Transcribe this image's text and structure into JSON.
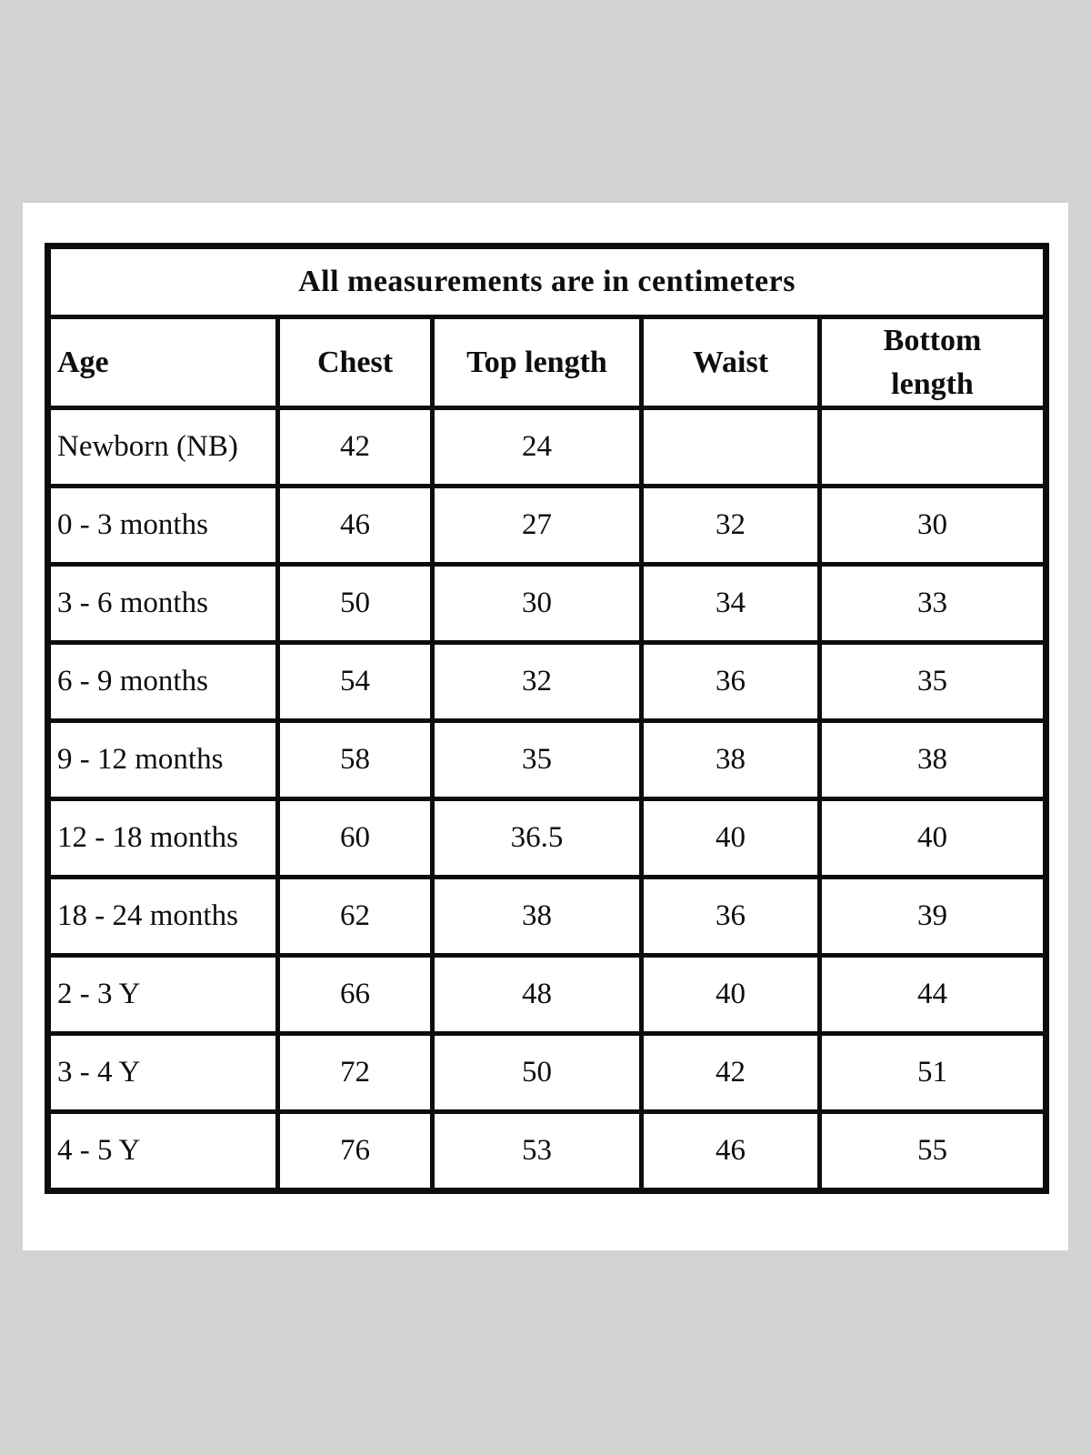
{
  "page": {
    "background_color": "#d2d3d0",
    "card_color": "#ffffff",
    "border_color": "#0d0d0d"
  },
  "table": {
    "title": "All measurements are in centimeters",
    "columns": [
      "Age",
      "Chest",
      "Top length",
      "Waist",
      "Bottom length"
    ],
    "rows": [
      {
        "age": "Newborn (NB)",
        "chest": "42",
        "top_length": "24",
        "waist": "",
        "bottom_length": ""
      },
      {
        "age": "0 - 3 months",
        "chest": "46",
        "top_length": "27",
        "waist": "32",
        "bottom_length": "30"
      },
      {
        "age": "3 - 6 months",
        "chest": "50",
        "top_length": "30",
        "waist": "34",
        "bottom_length": "33"
      },
      {
        "age": "6 - 9 months",
        "chest": "54",
        "top_length": "32",
        "waist": "36",
        "bottom_length": "35"
      },
      {
        "age": "9 - 12 months",
        "chest": "58",
        "top_length": "35",
        "waist": "38",
        "bottom_length": "38"
      },
      {
        "age": "12 - 18 months",
        "chest": "60",
        "top_length": "36.5",
        "waist": "40",
        "bottom_length": "40"
      },
      {
        "age": "18 - 24 months",
        "chest": "62",
        "top_length": "38",
        "waist": "36",
        "bottom_length": "39"
      },
      {
        "age": "2 - 3 Y",
        "chest": "66",
        "top_length": "48",
        "waist": "40",
        "bottom_length": "44"
      },
      {
        "age": "3 - 4 Y",
        "chest": "72",
        "top_length": "50",
        "waist": "42",
        "bottom_length": "51"
      },
      {
        "age": "4 - 5 Y",
        "chest": "76",
        "top_length": "53",
        "waist": "46",
        "bottom_length": "55"
      }
    ]
  }
}
